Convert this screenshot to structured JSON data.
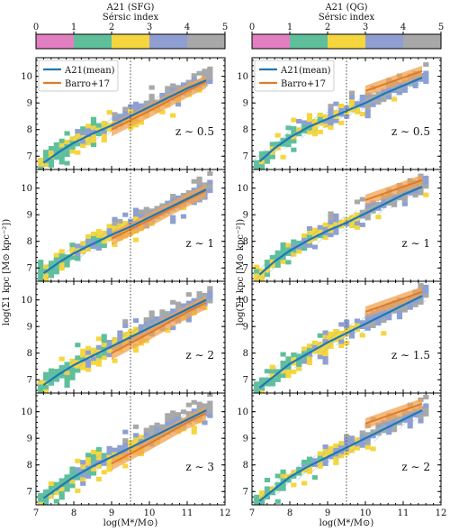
{
  "colors": {
    "sersic": [
      "#e27fc0",
      "#5fbf9a",
      "#f5d63e",
      "#8f9fd2",
      "#a8a8a8"
    ],
    "mean_line": "#1f77b4",
    "barro_line": "#e07b2a",
    "barro_band": "#f0a350",
    "hatch": "#6fb7d9",
    "vline": "#444444"
  },
  "y_axis_label": "log(Σ1 kpc [M⊙ kpc⁻²])",
  "x_axis_label": "log(M*/M⊙)",
  "columns": [
    {
      "key": "sfg",
      "colorbar_title": "A21 (SFG)",
      "colorbar_subtitle": "Sérsic index",
      "panels": [
        {
          "z_label": "z ∼ 0.5"
        },
        {
          "z_label": "z ∼ 1"
        },
        {
          "z_label": "z ∼ 2"
        },
        {
          "z_label": "z ∼ 3"
        }
      ]
    },
    {
      "key": "qg",
      "colorbar_title": "A21 (QG)",
      "colorbar_subtitle": "Sérsic index",
      "panels": [
        {
          "z_label": "z ∼ 0.5"
        },
        {
          "z_label": "z ∼ 1"
        },
        {
          "z_label": "z ∼ 1.5"
        },
        {
          "z_label": "z ∼ 2"
        }
      ]
    }
  ],
  "legend": {
    "mean": "A21(mean)",
    "barro": "Barro+17"
  },
  "chart_data": [
    {
      "type": "line",
      "panel": "SFG z ∼ 0.5",
      "xlim": [
        7,
        12
      ],
      "ylim": [
        6.5,
        10.7
      ],
      "xticks": [
        7,
        8,
        9,
        10,
        11,
        12
      ],
      "yticks": [
        7,
        8,
        9,
        10
      ],
      "vline_x": 9.5,
      "series": [
        {
          "name": "A21(mean)",
          "x": [
            7.2,
            7.6,
            8.0,
            8.5,
            9.0,
            9.5,
            10.0,
            10.5,
            11.0,
            11.5
          ],
          "y": [
            6.75,
            7.15,
            7.5,
            7.85,
            8.15,
            8.5,
            8.85,
            9.2,
            9.55,
            9.85
          ]
        },
        {
          "name": "Barro+17",
          "x": [
            9.0,
            10.0,
            11.0,
            11.5
          ],
          "y": [
            8.0,
            8.7,
            9.45,
            9.8
          ],
          "band": 0.25
        }
      ]
    },
    {
      "type": "line",
      "panel": "SFG z ∼ 1",
      "xlim": [
        7,
        12
      ],
      "ylim": [
        6.5,
        10.7
      ],
      "xticks": [
        7,
        8,
        9,
        10,
        11,
        12
      ],
      "yticks": [
        7,
        8,
        9,
        10
      ],
      "vline_x": 9.5,
      "series": [
        {
          "name": "A21(mean)",
          "x": [
            7.2,
            7.6,
            8.0,
            8.5,
            9.0,
            9.5,
            10.0,
            10.5,
            11.0,
            11.5
          ],
          "y": [
            6.8,
            7.2,
            7.55,
            7.9,
            8.25,
            8.55,
            8.9,
            9.25,
            9.6,
            9.95
          ]
        },
        {
          "name": "Barro+17",
          "x": [
            9.0,
            10.0,
            11.0,
            11.5
          ],
          "y": [
            8.1,
            8.8,
            9.55,
            9.9
          ],
          "band": 0.25
        }
      ]
    },
    {
      "type": "line",
      "panel": "SFG z ∼ 2",
      "xlim": [
        7,
        12
      ],
      "ylim": [
        6.5,
        10.7
      ],
      "xticks": [
        7,
        8,
        9,
        10,
        11,
        12
      ],
      "yticks": [
        7,
        8,
        9,
        10
      ],
      "vline_x": 9.5,
      "series": [
        {
          "name": "A21(mean)",
          "x": [
            7.2,
            7.6,
            8.0,
            8.5,
            9.0,
            9.5,
            10.0,
            10.5,
            11.0,
            11.5
          ],
          "y": [
            6.8,
            7.2,
            7.55,
            7.9,
            8.25,
            8.6,
            8.95,
            9.3,
            9.65,
            10.0
          ]
        },
        {
          "name": "Barro+17",
          "x": [
            9.0,
            10.0,
            11.0,
            11.5
          ],
          "y": [
            8.0,
            8.75,
            9.55,
            9.9
          ],
          "band": 0.25
        }
      ]
    },
    {
      "type": "line",
      "panel": "SFG z ∼ 3",
      "xlim": [
        7,
        12
      ],
      "ylim": [
        6.5,
        10.7
      ],
      "xticks": [
        7,
        8,
        9,
        10,
        11,
        12
      ],
      "yticks": [
        7,
        8,
        9,
        10
      ],
      "vline_x": 9.5,
      "series": [
        {
          "name": "A21(mean)",
          "x": [
            7.2,
            7.6,
            8.0,
            8.5,
            9.0,
            9.5,
            10.0,
            10.5,
            11.0,
            11.5
          ],
          "y": [
            6.75,
            7.15,
            7.55,
            7.95,
            8.3,
            8.65,
            9.0,
            9.35,
            9.7,
            10.05
          ]
        },
        {
          "name": "Barro+17",
          "x": [
            9.0,
            10.0,
            11.0,
            11.5
          ],
          "y": [
            8.05,
            8.8,
            9.6,
            9.95
          ],
          "band": 0.25
        }
      ]
    },
    {
      "type": "line",
      "panel": "QG z ∼ 0.5",
      "xlim": [
        7,
        12
      ],
      "ylim": [
        6.5,
        10.7
      ],
      "xticks": [
        7,
        8,
        9,
        10,
        11,
        12
      ],
      "yticks": [
        7,
        8,
        9,
        10
      ],
      "vline_x": 9.5,
      "series": [
        {
          "name": "A21(mean)",
          "x": [
            7.2,
            7.6,
            8.0,
            8.5,
            9.0,
            9.5,
            10.0,
            10.5,
            11.0,
            11.5
          ],
          "y": [
            6.8,
            7.3,
            7.7,
            8.1,
            8.4,
            8.7,
            9.0,
            9.35,
            9.65,
            9.95
          ]
        },
        {
          "name": "Barro+17",
          "x": [
            10.0,
            10.5,
            11.0,
            11.5
          ],
          "y": [
            9.45,
            9.7,
            9.95,
            10.2
          ],
          "band": 0.2
        }
      ]
    },
    {
      "type": "line",
      "panel": "QG z ∼ 1",
      "xlim": [
        7,
        12
      ],
      "ylim": [
        6.5,
        10.7
      ],
      "xticks": [
        7,
        8,
        9,
        10,
        11,
        12
      ],
      "yticks": [
        7,
        8,
        9,
        10
      ],
      "vline_x": 9.5,
      "series": [
        {
          "name": "A21(mean)",
          "x": [
            7.2,
            7.6,
            8.0,
            8.5,
            9.0,
            9.5,
            10.0,
            10.5,
            11.0,
            11.5
          ],
          "y": [
            6.75,
            7.25,
            7.65,
            8.05,
            8.4,
            8.7,
            9.05,
            9.4,
            9.75,
            10.05
          ]
        },
        {
          "name": "Barro+17",
          "x": [
            10.0,
            10.5,
            11.0,
            11.5
          ],
          "y": [
            9.55,
            9.8,
            10.05,
            10.3
          ],
          "band": 0.2
        }
      ]
    },
    {
      "type": "line",
      "panel": "QG z ∼ 1.5",
      "xlim": [
        7,
        12
      ],
      "ylim": [
        6.5,
        10.7
      ],
      "xticks": [
        7,
        8,
        9,
        10,
        11,
        12
      ],
      "yticks": [
        7,
        8,
        9,
        10
      ],
      "vline_x": 9.5,
      "series": [
        {
          "name": "A21(mean)",
          "x": [
            7.2,
            7.6,
            8.0,
            8.5,
            9.0,
            9.5,
            10.0,
            10.5,
            11.0,
            11.5
          ],
          "y": [
            6.7,
            7.15,
            7.6,
            8.0,
            8.4,
            8.75,
            9.1,
            9.45,
            9.8,
            10.15
          ]
        },
        {
          "name": "Barro+17",
          "x": [
            10.0,
            10.5,
            11.0,
            11.5
          ],
          "y": [
            9.55,
            9.8,
            10.05,
            10.3
          ],
          "band": 0.2
        }
      ]
    },
    {
      "type": "line",
      "panel": "QG z ∼ 2",
      "xlim": [
        7,
        12
      ],
      "ylim": [
        6.5,
        10.7
      ],
      "xticks": [
        7,
        8,
        9,
        10,
        11,
        12
      ],
      "yticks": [
        7,
        8,
        9,
        10
      ],
      "vline_x": 9.5,
      "series": [
        {
          "name": "A21(mean)",
          "x": [
            7.2,
            7.6,
            8.0,
            8.5,
            9.0,
            9.5,
            10.0,
            10.5,
            11.0,
            11.5
          ],
          "y": [
            6.65,
            7.1,
            7.55,
            7.95,
            8.3,
            8.65,
            9.0,
            9.35,
            9.7,
            10.05
          ]
        },
        {
          "name": "Barro+17",
          "x": [
            10.0,
            10.5,
            11.0,
            11.5
          ],
          "y": [
            9.55,
            9.8,
            10.05,
            10.3
          ],
          "band": 0.2
        }
      ]
    }
  ]
}
